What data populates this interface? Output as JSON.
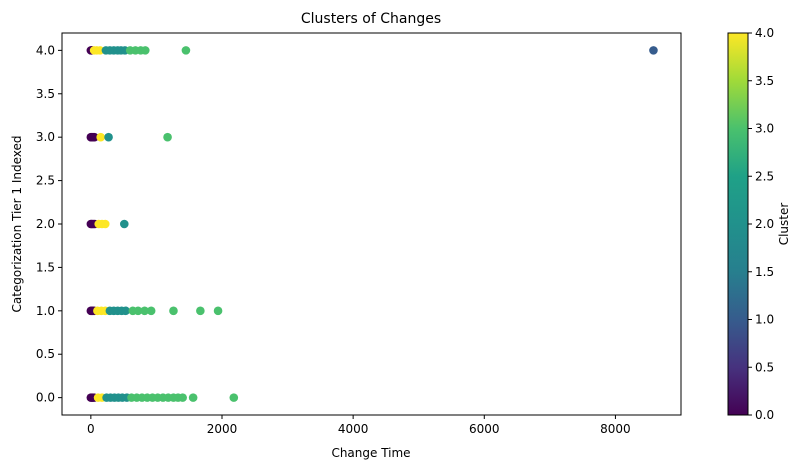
{
  "chart_data": {
    "type": "scatter",
    "title": "Clusters of Changes",
    "xlabel": "Change Time",
    "ylabel": "Categorization Tier 1 Indexed",
    "xlim": [
      -440,
      9000
    ],
    "ylim": [
      -0.2,
      4.2
    ],
    "xticks": [
      0,
      2000,
      4000,
      6000,
      8000
    ],
    "xtick_labels": [
      "0",
      "2000",
      "4000",
      "6000",
      "8000"
    ],
    "yticks": [
      0.0,
      0.5,
      1.0,
      1.5,
      2.0,
      2.5,
      3.0,
      3.5,
      4.0
    ],
    "ytick_labels": [
      "0.0",
      "0.5",
      "1.0",
      "1.5",
      "2.0",
      "2.5",
      "3.0",
      "3.5",
      "4.0"
    ],
    "grid": false,
    "colorbar": {
      "label": "Cluster",
      "range": [
        0,
        4
      ],
      "colormap": "viridis",
      "ticks": [
        0.0,
        0.5,
        1.0,
        1.5,
        2.0,
        2.5,
        3.0,
        3.5,
        4.0
      ],
      "tick_labels": [
        "0.0",
        "0.5",
        "1.0",
        "1.5",
        "2.0",
        "2.5",
        "3.0",
        "3.5",
        "4.0"
      ]
    },
    "points": [
      {
        "x": 0,
        "y": 4,
        "c": 0
      },
      {
        "x": 10,
        "y": 4,
        "c": 0
      },
      {
        "x": 20,
        "y": 4,
        "c": 0
      },
      {
        "x": 50,
        "y": 4,
        "c": 4
      },
      {
        "x": 90,
        "y": 4,
        "c": 4
      },
      {
        "x": 140,
        "y": 4,
        "c": 4
      },
      {
        "x": 230,
        "y": 4,
        "c": 2
      },
      {
        "x": 290,
        "y": 4,
        "c": 2
      },
      {
        "x": 350,
        "y": 4,
        "c": 2
      },
      {
        "x": 410,
        "y": 4,
        "c": 2
      },
      {
        "x": 460,
        "y": 4,
        "c": 2
      },
      {
        "x": 520,
        "y": 4,
        "c": 2
      },
      {
        "x": 600,
        "y": 4,
        "c": 3
      },
      {
        "x": 680,
        "y": 4,
        "c": 3
      },
      {
        "x": 760,
        "y": 4,
        "c": 3
      },
      {
        "x": 830,
        "y": 4,
        "c": 3
      },
      {
        "x": 1450,
        "y": 4,
        "c": 3
      },
      {
        "x": 8580,
        "y": 4,
        "c": 1
      },
      {
        "x": 0,
        "y": 3,
        "c": 0
      },
      {
        "x": 10,
        "y": 3,
        "c": 0
      },
      {
        "x": 25,
        "y": 3,
        "c": 0
      },
      {
        "x": 40,
        "y": 3,
        "c": 0
      },
      {
        "x": 55,
        "y": 3,
        "c": 0
      },
      {
        "x": 150,
        "y": 3,
        "c": 4
      },
      {
        "x": 270,
        "y": 3,
        "c": 2
      },
      {
        "x": 1170,
        "y": 3,
        "c": 3
      },
      {
        "x": 0,
        "y": 2,
        "c": 0
      },
      {
        "x": 15,
        "y": 2,
        "c": 0
      },
      {
        "x": 35,
        "y": 2,
        "c": 0
      },
      {
        "x": 60,
        "y": 2,
        "c": 0
      },
      {
        "x": 120,
        "y": 2,
        "c": 4
      },
      {
        "x": 170,
        "y": 2,
        "c": 4
      },
      {
        "x": 220,
        "y": 2,
        "c": 4
      },
      {
        "x": 510,
        "y": 2,
        "c": 2
      },
      {
        "x": 0,
        "y": 1,
        "c": 0
      },
      {
        "x": 15,
        "y": 1,
        "c": 0
      },
      {
        "x": 30,
        "y": 1,
        "c": 0
      },
      {
        "x": 50,
        "y": 1,
        "c": 0
      },
      {
        "x": 100,
        "y": 1,
        "c": 4
      },
      {
        "x": 160,
        "y": 1,
        "c": 4
      },
      {
        "x": 220,
        "y": 1,
        "c": 4
      },
      {
        "x": 290,
        "y": 1,
        "c": 2
      },
      {
        "x": 350,
        "y": 1,
        "c": 2
      },
      {
        "x": 410,
        "y": 1,
        "c": 2
      },
      {
        "x": 470,
        "y": 1,
        "c": 2
      },
      {
        "x": 530,
        "y": 1,
        "c": 2
      },
      {
        "x": 640,
        "y": 1,
        "c": 3
      },
      {
        "x": 720,
        "y": 1,
        "c": 3
      },
      {
        "x": 820,
        "y": 1,
        "c": 3
      },
      {
        "x": 920,
        "y": 1,
        "c": 3
      },
      {
        "x": 1260,
        "y": 1,
        "c": 3
      },
      {
        "x": 1670,
        "y": 1,
        "c": 3
      },
      {
        "x": 1940,
        "y": 1,
        "c": 3
      },
      {
        "x": 0,
        "y": 0,
        "c": 0
      },
      {
        "x": 15,
        "y": 0,
        "c": 0
      },
      {
        "x": 30,
        "y": 0,
        "c": 0
      },
      {
        "x": 50,
        "y": 0,
        "c": 0
      },
      {
        "x": 110,
        "y": 0,
        "c": 4
      },
      {
        "x": 170,
        "y": 0,
        "c": 4
      },
      {
        "x": 240,
        "y": 0,
        "c": 2
      },
      {
        "x": 300,
        "y": 0,
        "c": 2
      },
      {
        "x": 360,
        "y": 0,
        "c": 2
      },
      {
        "x": 420,
        "y": 0,
        "c": 2
      },
      {
        "x": 480,
        "y": 0,
        "c": 2
      },
      {
        "x": 550,
        "y": 0,
        "c": 2
      },
      {
        "x": 620,
        "y": 0,
        "c": 3
      },
      {
        "x": 700,
        "y": 0,
        "c": 3
      },
      {
        "x": 780,
        "y": 0,
        "c": 3
      },
      {
        "x": 860,
        "y": 0,
        "c": 3
      },
      {
        "x": 940,
        "y": 0,
        "c": 3
      },
      {
        "x": 1020,
        "y": 0,
        "c": 3
      },
      {
        "x": 1100,
        "y": 0,
        "c": 3
      },
      {
        "x": 1180,
        "y": 0,
        "c": 3
      },
      {
        "x": 1260,
        "y": 0,
        "c": 3
      },
      {
        "x": 1330,
        "y": 0,
        "c": 3
      },
      {
        "x": 1400,
        "y": 0,
        "c": 3
      },
      {
        "x": 1560,
        "y": 0,
        "c": 3
      },
      {
        "x": 2180,
        "y": 0,
        "c": 3
      }
    ]
  }
}
